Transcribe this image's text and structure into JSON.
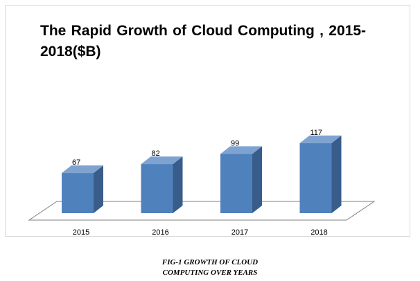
{
  "chart_data": {
    "type": "bar",
    "title": "The Rapid Growth of Cloud Computing , 2015-2018($B)",
    "categories": [
      "2015",
      "2016",
      "2017",
      "2018"
    ],
    "values": [
      67,
      82,
      99,
      117
    ],
    "xlabel": "",
    "ylabel": "",
    "ylim": [
      0,
      120
    ],
    "grid": false,
    "legend": "none",
    "three_d": true,
    "colors": {
      "bar_front": "#4F81BD",
      "bar_side": "#385D8A",
      "bar_top": "#7FA3D1",
      "floor_stroke": "#7f7f7f"
    }
  },
  "caption": {
    "line1": "FIG-1 GROWTH OF CLOUD",
    "line2": "COMPUTING OVER YEARS"
  }
}
